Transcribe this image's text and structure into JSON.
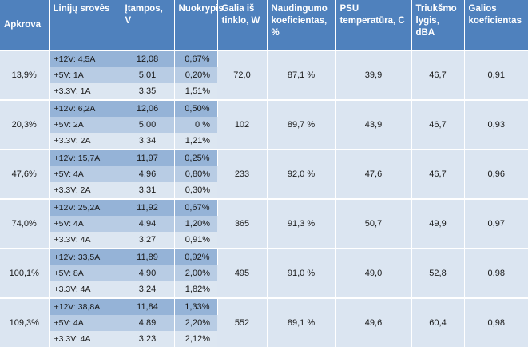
{
  "headers": [
    "Apkrova",
    "Linijų srovės",
    "Įtampos, V",
    "Nuokrypis",
    "Galia iš tinklo, W",
    "Naudingumo koeficientas, %",
    "PSU temperatūra, C",
    "Triukšmo lygis, dBA",
    "Galios koeficientas"
  ],
  "groups": [
    {
      "load": "13,9%",
      "power": "72,0",
      "efficiency": "87,1 %",
      "temperature": "39,9",
      "noise": "46,7",
      "power_factor": "0,91",
      "lines": [
        {
          "line": "+12V: 4,5A",
          "voltage": "12,08",
          "deviation": "0,67%"
        },
        {
          "line": "+5V: 1A",
          "voltage": "5,01",
          "deviation": "0,20%"
        },
        {
          "line": "+3.3V: 1A",
          "voltage": "3,35",
          "deviation": "1,51%"
        }
      ]
    },
    {
      "load": "20,3%",
      "power": "102",
      "efficiency": "89,7 %",
      "temperature": "43,9",
      "noise": "46,7",
      "power_factor": "0,93",
      "lines": [
        {
          "line": "+12V: 6,2A",
          "voltage": "12,06",
          "deviation": "0,50%"
        },
        {
          "line": "+5V: 2A",
          "voltage": "5,00",
          "deviation": "0 %"
        },
        {
          "line": "+3.3V: 2A",
          "voltage": "3,34",
          "deviation": "1,21%"
        }
      ]
    },
    {
      "load": "47,6%",
      "power": "233",
      "efficiency": "92,0 %",
      "temperature": "47,6",
      "noise": "46,7",
      "power_factor": "0,96",
      "lines": [
        {
          "line": "+12V: 15,7A",
          "voltage": "11,97",
          "deviation": "0,25%"
        },
        {
          "line": "+5V: 4A",
          "voltage": "4,96",
          "deviation": "0,80%"
        },
        {
          "line": "+3.3V: 2A",
          "voltage": "3,31",
          "deviation": "0,30%"
        }
      ]
    },
    {
      "load": "74,0%",
      "power": "365",
      "efficiency": "91,3 %",
      "temperature": "50,7",
      "noise": "49,9",
      "power_factor": "0,97",
      "lines": [
        {
          "line": "+12V: 25,2A",
          "voltage": "11,92",
          "deviation": "0,67%"
        },
        {
          "line": "+5V: 4A",
          "voltage": "4,94",
          "deviation": "1,20%"
        },
        {
          "line": "+3.3V: 4A",
          "voltage": "3,27",
          "deviation": "0,91%"
        }
      ]
    },
    {
      "load": "100,1%",
      "power": "495",
      "efficiency": "91,0 %",
      "temperature": "49,0",
      "noise": "52,8",
      "power_factor": "0,98",
      "lines": [
        {
          "line": "+12V: 33,5A",
          "voltage": "11,89",
          "deviation": "0,92%"
        },
        {
          "line": "+5V: 8A",
          "voltage": "4,90",
          "deviation": "2,00%"
        },
        {
          "line": "+3.3V: 4A",
          "voltage": "3,24",
          "deviation": "1,82%"
        }
      ]
    },
    {
      "load": "109,3%",
      "power": "552",
      "efficiency": "89,1 %",
      "temperature": "49,6",
      "noise": "60,4",
      "power_factor": "0,98",
      "lines": [
        {
          "line": "+12V: 38,8A",
          "voltage": "11,84",
          "deviation": "1,33%"
        },
        {
          "line": "+5V: 4A",
          "voltage": "4,89",
          "deviation": "2,20%"
        },
        {
          "line": "+3.3V: 4A",
          "voltage": "3,23",
          "deviation": "2,12%"
        }
      ]
    }
  ]
}
